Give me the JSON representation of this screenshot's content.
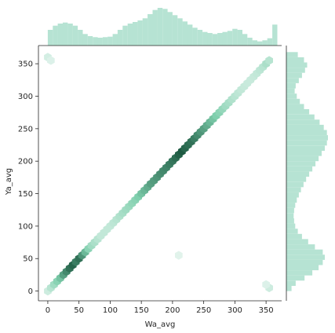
{
  "chart_data": {
    "type": "hexbin-jointplot",
    "title": "",
    "xlabel": "Wa_avg",
    "ylabel": "Ya_avg",
    "xlim": [
      -15,
      375
    ],
    "ylim": [
      -15,
      378
    ],
    "x_ticks": [
      0,
      50,
      100,
      150,
      200,
      250,
      300,
      350
    ],
    "y_ticks": [
      0,
      50,
      100,
      150,
      200,
      250,
      300,
      350
    ],
    "grid": false,
    "legend": "none",
    "colors": {
      "hex_light": "#eef8f4",
      "hex_mid": "#7fcfad",
      "hex_dark": "#1d5a42",
      "marginal_bar": "#b6e3d3",
      "axis": "#262626"
    },
    "hex_density": [
      {
        "x": 0,
        "y": 0,
        "v": 0.15
      },
      {
        "x": 5,
        "y": 5,
        "v": 0.25
      },
      {
        "x": 10,
        "y": 10,
        "v": 0.35
      },
      {
        "x": 15,
        "y": 15,
        "v": 0.45
      },
      {
        "x": 20,
        "y": 20,
        "v": 0.55
      },
      {
        "x": 25,
        "y": 25,
        "v": 0.7
      },
      {
        "x": 30,
        "y": 30,
        "v": 0.8
      },
      {
        "x": 35,
        "y": 35,
        "v": 0.9
      },
      {
        "x": 40,
        "y": 40,
        "v": 0.95
      },
      {
        "x": 45,
        "y": 45,
        "v": 0.85
      },
      {
        "x": 50,
        "y": 50,
        "v": 0.9
      },
      {
        "x": 55,
        "y": 55,
        "v": 0.75
      },
      {
        "x": 60,
        "y": 60,
        "v": 0.6
      },
      {
        "x": 65,
        "y": 65,
        "v": 0.45
      },
      {
        "x": 70,
        "y": 70,
        "v": 0.35
      },
      {
        "x": 75,
        "y": 75,
        "v": 0.3
      },
      {
        "x": 80,
        "y": 80,
        "v": 0.25
      },
      {
        "x": 85,
        "y": 85,
        "v": 0.2
      },
      {
        "x": 90,
        "y": 90,
        "v": 0.2
      },
      {
        "x": 95,
        "y": 95,
        "v": 0.2
      },
      {
        "x": 100,
        "y": 100,
        "v": 0.2
      },
      {
        "x": 105,
        "y": 105,
        "v": 0.22
      },
      {
        "x": 110,
        "y": 110,
        "v": 0.25
      },
      {
        "x": 115,
        "y": 115,
        "v": 0.28
      },
      {
        "x": 120,
        "y": 120,
        "v": 0.32
      },
      {
        "x": 125,
        "y": 125,
        "v": 0.35
      },
      {
        "x": 130,
        "y": 130,
        "v": 0.38
      },
      {
        "x": 135,
        "y": 135,
        "v": 0.42
      },
      {
        "x": 140,
        "y": 140,
        "v": 0.45
      },
      {
        "x": 145,
        "y": 145,
        "v": 0.5
      },
      {
        "x": 150,
        "y": 150,
        "v": 0.55
      },
      {
        "x": 155,
        "y": 155,
        "v": 0.6
      },
      {
        "x": 160,
        "y": 160,
        "v": 0.65
      },
      {
        "x": 165,
        "y": 165,
        "v": 0.7
      },
      {
        "x": 170,
        "y": 170,
        "v": 0.72
      },
      {
        "x": 175,
        "y": 175,
        "v": 0.75
      },
      {
        "x": 180,
        "y": 180,
        "v": 0.78
      },
      {
        "x": 185,
        "y": 185,
        "v": 0.8
      },
      {
        "x": 190,
        "y": 190,
        "v": 0.82
      },
      {
        "x": 195,
        "y": 195,
        "v": 0.85
      },
      {
        "x": 200,
        "y": 200,
        "v": 0.88
      },
      {
        "x": 205,
        "y": 205,
        "v": 0.92
      },
      {
        "x": 210,
        "y": 210,
        "v": 0.97
      },
      {
        "x": 215,
        "y": 215,
        "v": 1.0
      },
      {
        "x": 220,
        "y": 220,
        "v": 0.95
      },
      {
        "x": 225,
        "y": 225,
        "v": 0.92
      },
      {
        "x": 230,
        "y": 230,
        "v": 0.9
      },
      {
        "x": 235,
        "y": 235,
        "v": 0.85
      },
      {
        "x": 240,
        "y": 240,
        "v": 0.8
      },
      {
        "x": 245,
        "y": 245,
        "v": 0.75
      },
      {
        "x": 250,
        "y": 250,
        "v": 0.7
      },
      {
        "x": 255,
        "y": 255,
        "v": 0.65
      },
      {
        "x": 260,
        "y": 260,
        "v": 0.6
      },
      {
        "x": 265,
        "y": 265,
        "v": 0.55
      },
      {
        "x": 270,
        "y": 270,
        "v": 0.5
      },
      {
        "x": 275,
        "y": 275,
        "v": 0.45
      },
      {
        "x": 280,
        "y": 280,
        "v": 0.4
      },
      {
        "x": 285,
        "y": 285,
        "v": 0.35
      },
      {
        "x": 290,
        "y": 290,
        "v": 0.32
      },
      {
        "x": 295,
        "y": 295,
        "v": 0.28
      },
      {
        "x": 300,
        "y": 300,
        "v": 0.25
      },
      {
        "x": 305,
        "y": 305,
        "v": 0.22
      },
      {
        "x": 310,
        "y": 310,
        "v": 0.2
      },
      {
        "x": 315,
        "y": 315,
        "v": 0.18
      },
      {
        "x": 320,
        "y": 320,
        "v": 0.17
      },
      {
        "x": 325,
        "y": 325,
        "v": 0.17
      },
      {
        "x": 330,
        "y": 330,
        "v": 0.18
      },
      {
        "x": 335,
        "y": 335,
        "v": 0.2
      },
      {
        "x": 340,
        "y": 340,
        "v": 0.22
      },
      {
        "x": 345,
        "y": 345,
        "v": 0.25
      },
      {
        "x": 350,
        "y": 350,
        "v": 0.3
      },
      {
        "x": 355,
        "y": 355,
        "v": 0.25
      },
      {
        "x": 0,
        "y": 360,
        "v": 0.12
      },
      {
        "x": 5,
        "y": 355,
        "v": 0.08
      },
      {
        "x": 355,
        "y": 5,
        "v": 0.15
      },
      {
        "x": 350,
        "y": 10,
        "v": 0.08
      },
      {
        "x": 210,
        "y": 55,
        "v": 0.06
      }
    ],
    "marginal_x": {
      "bin_start": 0,
      "bin_width": 8,
      "counts": [
        0.3,
        0.38,
        0.42,
        0.44,
        0.42,
        0.38,
        0.3,
        0.22,
        0.18,
        0.16,
        0.15,
        0.16,
        0.17,
        0.22,
        0.3,
        0.38,
        0.42,
        0.45,
        0.48,
        0.52,
        0.6,
        0.68,
        0.72,
        0.7,
        0.64,
        0.58,
        0.52,
        0.46,
        0.4,
        0.34,
        0.3,
        0.26,
        0.24,
        0.22,
        0.24,
        0.26,
        0.28,
        0.32,
        0.3,
        0.22,
        0.15,
        0.1,
        0.08,
        0.1,
        0.14,
        0.4
      ]
    },
    "marginal_y": {
      "bin_start": 0,
      "bin_width": 8,
      "counts": [
        0.1,
        0.18,
        0.35,
        0.5,
        0.62,
        0.7,
        0.74,
        0.7,
        0.55,
        0.42,
        0.3,
        0.22,
        0.17,
        0.15,
        0.14,
        0.15,
        0.17,
        0.2,
        0.24,
        0.28,
        0.33,
        0.38,
        0.44,
        0.5,
        0.56,
        0.62,
        0.68,
        0.74,
        0.78,
        0.8,
        0.78,
        0.72,
        0.64,
        0.54,
        0.44,
        0.34,
        0.26,
        0.2,
        0.16,
        0.18,
        0.24,
        0.3,
        0.36,
        0.4,
        0.34,
        0.22
      ]
    }
  }
}
